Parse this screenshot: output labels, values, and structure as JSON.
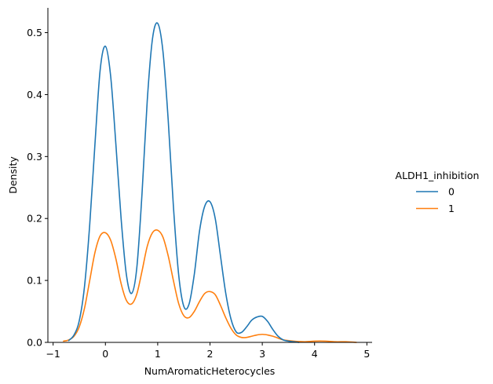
{
  "chart_data": {
    "type": "line",
    "subtype": "kde",
    "xlabel": "NumAromaticHeterocycles",
    "ylabel": "Density",
    "xlim": [
      -1.1,
      5.1
    ],
    "ylim": [
      0,
      0.54
    ],
    "xticks": [
      -1,
      0,
      1,
      2,
      3,
      4,
      5
    ],
    "yticks": [
      0.0,
      0.1,
      0.2,
      0.3,
      0.4,
      0.5
    ],
    "xtick_labels": [
      "−1",
      "0",
      "1",
      "2",
      "3",
      "4",
      "5"
    ],
    "ytick_labels": [
      "0.0",
      "0.1",
      "0.2",
      "0.3",
      "0.4",
      "0.5"
    ],
    "grid": false,
    "legend": {
      "title": "ALDH1_inhibition",
      "placement": "right-outside",
      "entries": [
        "0",
        "1"
      ]
    },
    "series": [
      {
        "name": "0",
        "color": "#1f77b4",
        "x": [
          -0.7,
          -0.6,
          -0.5,
          -0.4,
          -0.3,
          -0.2,
          -0.1,
          0.0,
          0.1,
          0.2,
          0.3,
          0.4,
          0.5,
          0.6,
          0.7,
          0.8,
          0.9,
          1.0,
          1.1,
          1.2,
          1.3,
          1.4,
          1.5,
          1.6,
          1.7,
          1.8,
          1.9,
          2.0,
          2.1,
          2.2,
          2.3,
          2.4,
          2.5,
          2.6,
          2.7,
          2.8,
          2.9,
          3.0,
          3.1,
          3.2,
          3.3,
          3.4,
          3.5,
          3.6,
          3.7
        ],
        "y": [
          0.003,
          0.012,
          0.035,
          0.09,
          0.19,
          0.32,
          0.44,
          0.478,
          0.43,
          0.32,
          0.2,
          0.11,
          0.079,
          0.12,
          0.24,
          0.39,
          0.49,
          0.515,
          0.47,
          0.36,
          0.22,
          0.11,
          0.058,
          0.062,
          0.11,
          0.18,
          0.22,
          0.227,
          0.2,
          0.14,
          0.08,
          0.038,
          0.017,
          0.016,
          0.025,
          0.036,
          0.041,
          0.042,
          0.034,
          0.021,
          0.01,
          0.004,
          0.002,
          0.001,
          0.0
        ]
      },
      {
        "name": "1",
        "color": "#ff7f0e",
        "x": [
          -0.8,
          -0.7,
          -0.6,
          -0.5,
          -0.4,
          -0.3,
          -0.2,
          -0.1,
          0.0,
          0.1,
          0.2,
          0.3,
          0.4,
          0.5,
          0.6,
          0.7,
          0.8,
          0.9,
          1.0,
          1.1,
          1.2,
          1.3,
          1.4,
          1.5,
          1.6,
          1.7,
          1.8,
          1.9,
          2.0,
          2.1,
          2.2,
          2.3,
          2.4,
          2.5,
          2.6,
          2.7,
          2.8,
          2.9,
          3.0,
          3.1,
          3.2,
          3.3,
          3.4,
          3.6,
          3.8,
          4.0,
          4.2,
          4.4,
          4.6,
          4.8
        ],
        "y": [
          0.002,
          0.004,
          0.01,
          0.025,
          0.055,
          0.1,
          0.145,
          0.172,
          0.177,
          0.165,
          0.135,
          0.095,
          0.068,
          0.062,
          0.078,
          0.115,
          0.155,
          0.177,
          0.181,
          0.17,
          0.14,
          0.1,
          0.063,
          0.043,
          0.04,
          0.05,
          0.066,
          0.079,
          0.082,
          0.077,
          0.06,
          0.04,
          0.023,
          0.012,
          0.008,
          0.008,
          0.01,
          0.012,
          0.013,
          0.012,
          0.01,
          0.007,
          0.004,
          0.002,
          0.001,
          0.002,
          0.002,
          0.001,
          0.001,
          0.0
        ]
      }
    ]
  }
}
